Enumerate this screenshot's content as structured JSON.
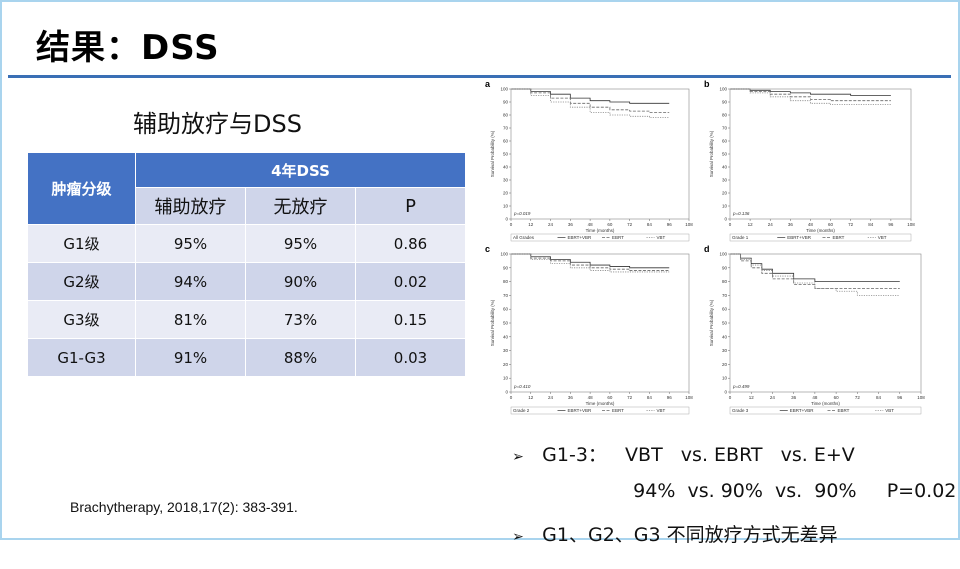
{
  "slide": {
    "title": "结果：DSS",
    "subtitle": "辅助放疗与DSS",
    "citation": "Brachytherapy, 2018,17(2): 383-391."
  },
  "table": {
    "row_header": "肿瘤分级",
    "group_header": "4年DSS",
    "columns": [
      "辅助放疗",
      "无放疗",
      "P"
    ],
    "rows": [
      {
        "grade": "G1级",
        "adjuvant": "95%",
        "none": "95%",
        "p": "0.86"
      },
      {
        "grade": "G2级",
        "adjuvant": "94%",
        "none": "90%",
        "p": "0.02"
      },
      {
        "grade": "G3级",
        "adjuvant": "81%",
        "none": "73%",
        "p": "0.15"
      },
      {
        "grade": "G1-G3",
        "adjuvant": "91%",
        "none": "88%",
        "p": "0.03"
      }
    ],
    "colors": {
      "header": "#4472c4",
      "band_light": "#e9ebf5",
      "band_dark": "#cfd5ea"
    }
  },
  "bullets": [
    {
      "icon": "arrow-bullet-icon",
      "text": "G1-3：   VBT   vs. EBRT   vs. E+V"
    },
    {
      "icon": "",
      "text": "94%  vs. 90%  vs.  90%     P=0.02"
    },
    {
      "icon": "arrow-bullet-icon",
      "text": "G1、G2、G3 不同放疗方式无差异"
    }
  ],
  "chart_data": [
    {
      "type": "line",
      "panel": "a",
      "ylabel": "Survival Probability (%)",
      "xlabel": "Time (months)",
      "x_ticks": [
        0,
        12,
        24,
        36,
        48,
        60,
        72,
        84,
        96,
        108
      ],
      "y_ticks": [
        0,
        10,
        20,
        30,
        40,
        50,
        60,
        70,
        80,
        90,
        100
      ],
      "xlim": [
        0,
        108
      ],
      "ylim": [
        0,
        100
      ],
      "p_value": "p=0.019",
      "legend": [
        "All Grades",
        "EBRT+VBR",
        "EBRT",
        "VBT"
      ],
      "series": [
        {
          "values_x": [
            0,
            12,
            24,
            36,
            48,
            60,
            72,
            84,
            96
          ],
          "values_y": [
            100,
            98,
            96,
            93,
            91,
            90,
            89,
            89,
            89
          ]
        },
        {
          "values_x": [
            0,
            12,
            24,
            36,
            48,
            60,
            72,
            84,
            96
          ],
          "values_y": [
            100,
            97,
            93,
            89,
            86,
            84,
            83,
            82,
            82
          ]
        },
        {
          "values_x": [
            0,
            12,
            24,
            36,
            48,
            60,
            72,
            84,
            96
          ],
          "values_y": [
            100,
            95,
            90,
            86,
            82,
            80,
            79,
            78,
            78
          ]
        }
      ]
    },
    {
      "type": "line",
      "panel": "b",
      "ylabel": "Survival Probability (%)",
      "xlabel": "Time (months)",
      "x_ticks": [
        0,
        12,
        24,
        36,
        48,
        60,
        72,
        84,
        96,
        108
      ],
      "y_ticks": [
        0,
        10,
        20,
        30,
        40,
        50,
        60,
        70,
        80,
        90,
        100
      ],
      "xlim": [
        0,
        108
      ],
      "ylim": [
        0,
        100
      ],
      "p_value": "p=0.136",
      "legend": [
        "Grade 1",
        "EBRT+VBR",
        "EBRT",
        "VBT"
      ],
      "series": [
        {
          "values_x": [
            0,
            12,
            24,
            36,
            48,
            60,
            72,
            84,
            96
          ],
          "values_y": [
            100,
            99,
            98,
            97,
            96,
            96,
            95,
            95,
            95
          ]
        },
        {
          "values_x": [
            0,
            12,
            24,
            36,
            48,
            60,
            72,
            84,
            96
          ],
          "values_y": [
            100,
            98,
            96,
            94,
            92,
            91,
            91,
            91,
            91
          ]
        },
        {
          "values_x": [
            0,
            12,
            24,
            36,
            48,
            60,
            72,
            84,
            96
          ],
          "values_y": [
            100,
            97,
            94,
            91,
            89,
            88,
            88,
            88,
            88
          ]
        }
      ]
    },
    {
      "type": "line",
      "panel": "c",
      "ylabel": "Survival Probability (%)",
      "xlabel": "Time (months)",
      "x_ticks": [
        0,
        12,
        24,
        36,
        48,
        60,
        72,
        84,
        96,
        108
      ],
      "y_ticks": [
        0,
        10,
        20,
        30,
        40,
        50,
        60,
        70,
        80,
        90,
        100
      ],
      "xlim": [
        0,
        108
      ],
      "ylim": [
        0,
        100
      ],
      "p_value": "p=0.410",
      "legend": [
        "Grade 2",
        "EBRT+VBR",
        "EBRT",
        "VBT"
      ],
      "series": [
        {
          "values_x": [
            0,
            12,
            24,
            36,
            48,
            60,
            72,
            84,
            96
          ],
          "values_y": [
            100,
            98,
            96,
            94,
            92,
            91,
            90,
            90,
            90
          ]
        },
        {
          "values_x": [
            0,
            12,
            24,
            36,
            48,
            60,
            72,
            84,
            96
          ],
          "values_y": [
            100,
            97,
            95,
            92,
            90,
            89,
            88,
            88,
            88
          ]
        },
        {
          "values_x": [
            0,
            12,
            24,
            36,
            48,
            60,
            72,
            84,
            96
          ],
          "values_y": [
            100,
            96,
            93,
            90,
            88,
            87,
            87,
            87,
            87
          ]
        }
      ]
    },
    {
      "type": "line",
      "panel": "d",
      "ylabel": "Survival Probability (%)",
      "xlabel": "Time (months)",
      "x_ticks": [
        0,
        12,
        24,
        36,
        48,
        60,
        72,
        84,
        96,
        108
      ],
      "y_ticks": [
        0,
        10,
        20,
        30,
        40,
        50,
        60,
        70,
        80,
        90,
        100
      ],
      "xlim": [
        0,
        108
      ],
      "ylim": [
        0,
        100
      ],
      "p_value": "p=0.499",
      "legend": [
        "Grade 3",
        "EBRT+VBR",
        "EBRT",
        "VBT"
      ],
      "series": [
        {
          "values_x": [
            0,
            6,
            12,
            18,
            24,
            36,
            48,
            60,
            72,
            96
          ],
          "values_y": [
            100,
            97,
            93,
            89,
            86,
            82,
            80,
            80,
            80,
            80
          ]
        },
        {
          "values_x": [
            0,
            6,
            12,
            18,
            24,
            36,
            48,
            60,
            72,
            96
          ],
          "values_y": [
            100,
            95,
            90,
            86,
            82,
            78,
            75,
            75,
            75,
            75
          ]
        },
        {
          "values_x": [
            0,
            6,
            12,
            18,
            24,
            36,
            48,
            60,
            72,
            96
          ],
          "values_y": [
            100,
            96,
            92,
            88,
            84,
            79,
            75,
            73,
            70,
            70
          ]
        }
      ]
    }
  ]
}
